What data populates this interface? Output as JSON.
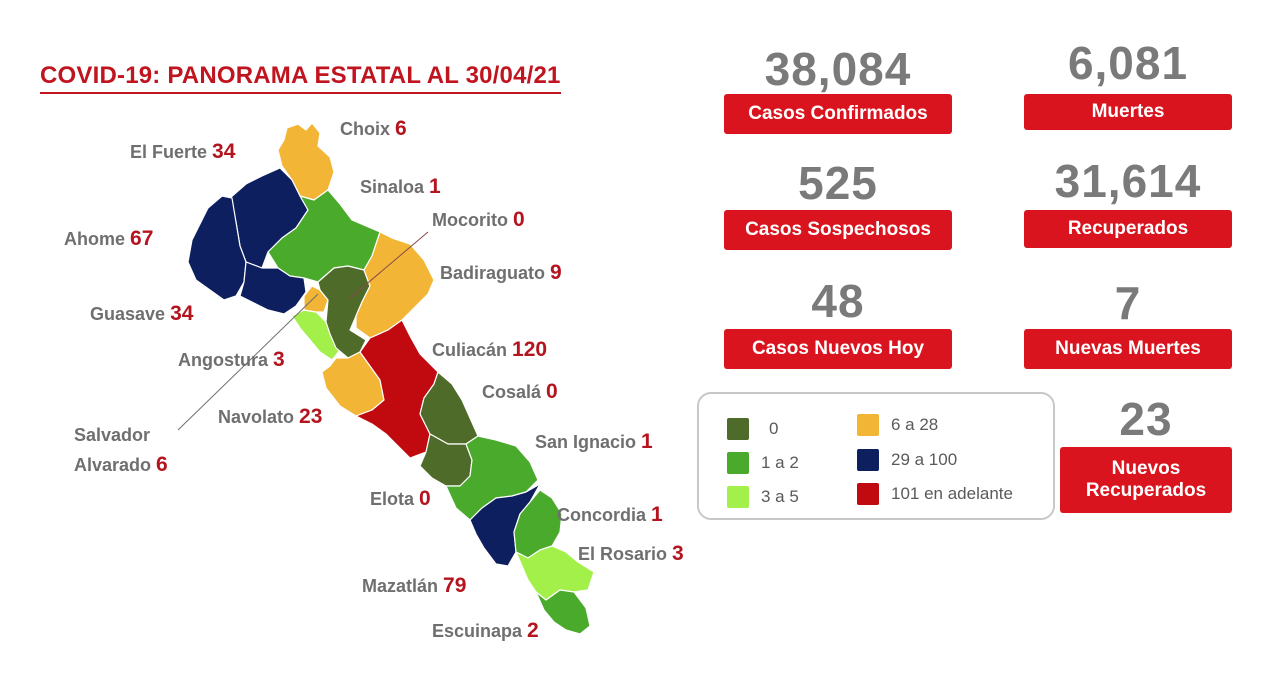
{
  "title": "COVID-19: PANORAMA ESTATAL AL 30/04/21",
  "colors": {
    "c0": "#4f6b2a",
    "c1_2": "#4aaa2c",
    "c3_5": "#a3f04a",
    "c6_28": "#f2b535",
    "c29_100": "#0d1f5e",
    "c101": "#c00a10",
    "accent": "#d9141e",
    "number": "#b3141e"
  },
  "stats": {
    "confirmados": {
      "value": "38,084",
      "label": "Casos Confirmados"
    },
    "muertes": {
      "value": "6,081",
      "label": "Muertes"
    },
    "sospechosos": {
      "value": "525",
      "label": "Casos Sospechosos"
    },
    "recuperados": {
      "value": "31,614",
      "label": "Recuperados"
    },
    "nuevos_hoy": {
      "value": "48",
      "label": "Casos Nuevos Hoy"
    },
    "nuevas_muertes": {
      "value": "7",
      "label": "Nuevas Muertes"
    },
    "nuevos_recuperados": {
      "value": "23",
      "label_line1": "Nuevos",
      "label_line2": "Recuperados"
    }
  },
  "legend": [
    {
      "label": "0",
      "color": "#4f6b2a"
    },
    {
      "label": "1 a 2",
      "color": "#4aaa2c"
    },
    {
      "label": "3 a 5",
      "color": "#a3f04a"
    },
    {
      "label": "6 a 28",
      "color": "#f2b535"
    },
    {
      "label": "29 a 100",
      "color": "#0d1f5e"
    },
    {
      "label": "101 en adelante",
      "color": "#c00a10"
    }
  ],
  "municipios": {
    "choix": {
      "name": "Choix",
      "value": "6"
    },
    "el_fuerte": {
      "name": "El Fuerte",
      "value": "34"
    },
    "sinaloa": {
      "name": "Sinaloa",
      "value": "1"
    },
    "mocorito": {
      "name": "Mocorito",
      "value": "0"
    },
    "ahome": {
      "name": "Ahome",
      "value": "67"
    },
    "badiraguato": {
      "name": "Badiraguato",
      "value": "9"
    },
    "guasave": {
      "name": "Guasave",
      "value": "34"
    },
    "angostura": {
      "name": "Angostura",
      "value": "3"
    },
    "culiacan": {
      "name": "Culiacán",
      "value": "120"
    },
    "cosala": {
      "name": "Cosalá",
      "value": "0"
    },
    "navolato": {
      "name": "Navolato",
      "value": "23"
    },
    "salvador_alvarado": {
      "name_line1": "Salvador",
      "name_line2": "Alvarado",
      "value": "6"
    },
    "san_ignacio": {
      "name": "San Ignacio",
      "value": "1"
    },
    "elota": {
      "name": "Elota",
      "value": "0"
    },
    "concordia": {
      "name": "Concordia",
      "value": "1"
    },
    "el_rosario": {
      "name": "El Rosario",
      "value": "3"
    },
    "mazatlan": {
      "name": "Mazatlán",
      "value": "79"
    },
    "escuinapa": {
      "name": "Escuinapa",
      "value": "2"
    }
  }
}
